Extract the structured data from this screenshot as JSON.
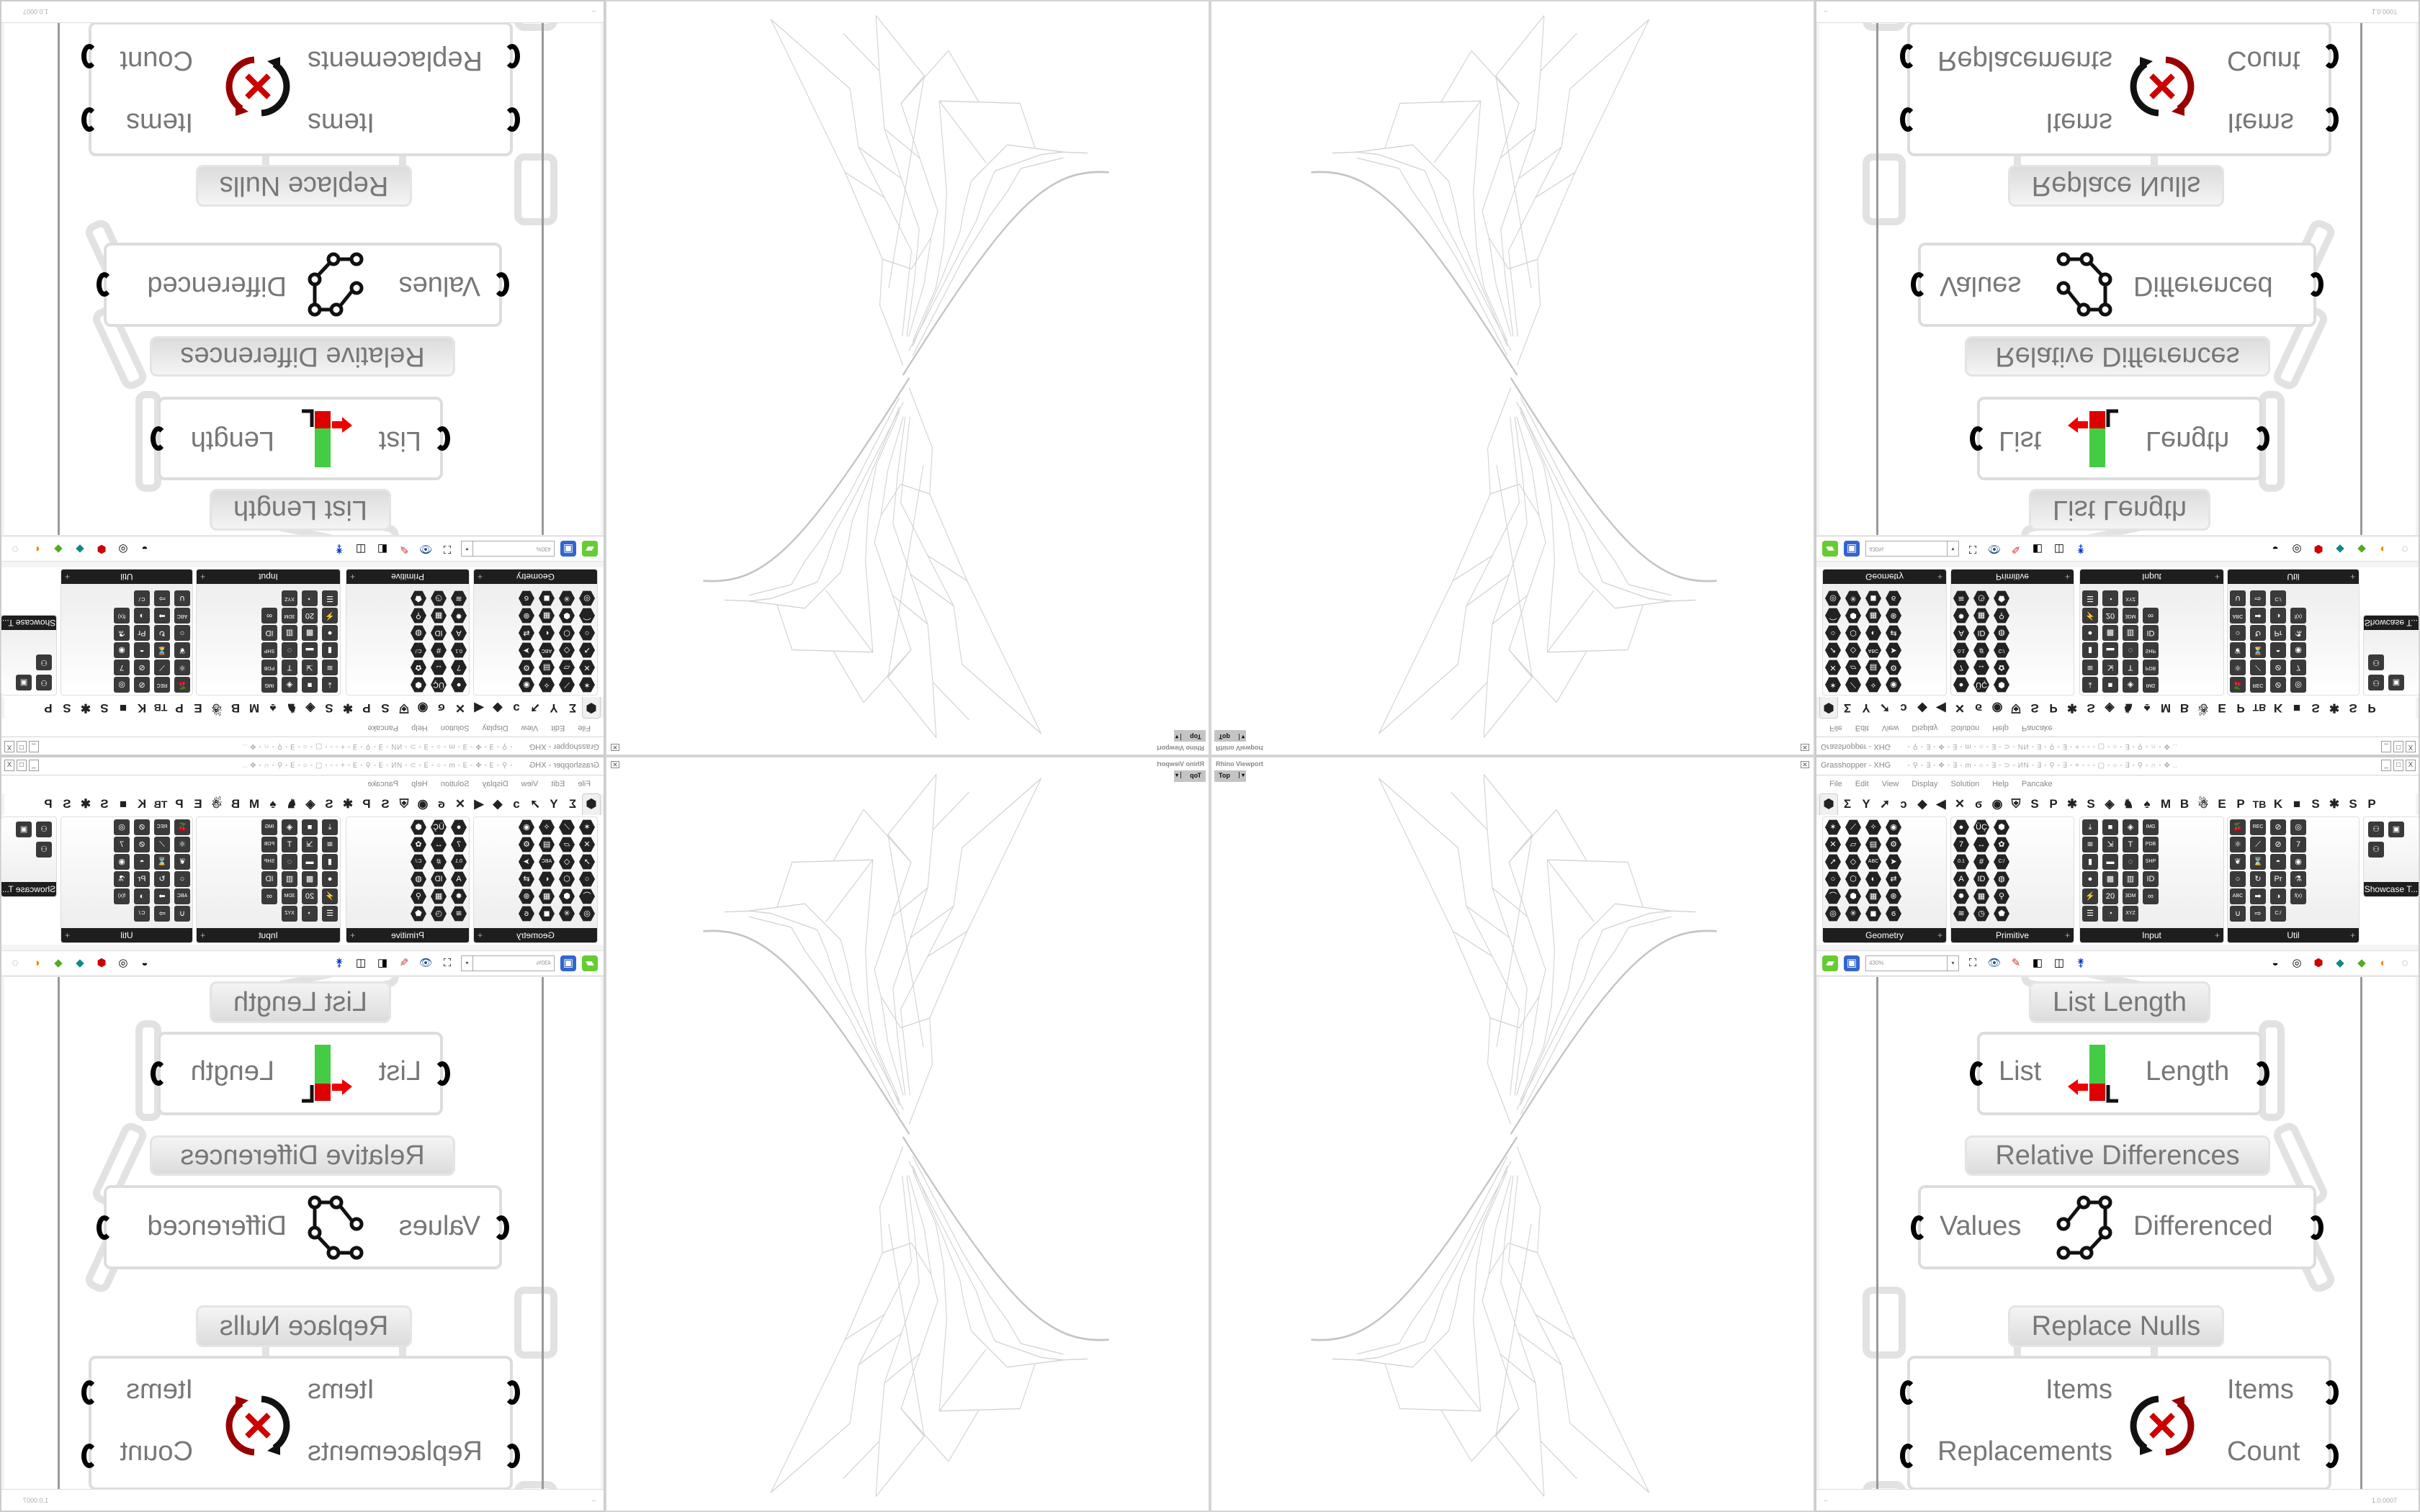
{
  "viewport": {
    "title": "Rhino Viewport",
    "view": "Top",
    "dropdown": "▾",
    "close": "✕"
  },
  "grasshopper": {
    "title": "Grasshopper - XHG",
    "title_glyphs": "◦ ⚲ ◦ ∃ ◦ ✥ ◦ ∃ ◦ m ◦ ○ ◦ ∃ ◦ ⊃ ◦ ИN ◦ ∃ ◦ ⚲ ◦ ∃ ◦ + ◦ ◦ ◦ ▢ ◦ ○ ◦ ∃ ◦ ⚲ ◦ ∩ ◦ ✥ ..",
    "window_buttons": [
      "_",
      "□",
      "X"
    ],
    "menu": [
      "File",
      "Edit",
      "View",
      "Display",
      "Solution",
      "Help",
      "Pancake"
    ],
    "tabs": [
      "⬢",
      "Σ",
      "Y",
      "➚",
      "ↄ",
      "◆",
      "◀",
      "✕",
      "ϭ",
      "◉",
      "⛨",
      "S",
      "P",
      "✱",
      "S",
      "◈",
      "♞",
      "♠",
      "M",
      "B",
      "☃",
      "E",
      "P",
      "TB",
      "K",
      "■",
      "S",
      "✱",
      "S",
      "P"
    ],
    "palette": [
      {
        "label": "Geometry",
        "plus": "+",
        "shape": "hex",
        "icons": [
          "✶",
          "✕",
          "➚",
          "○",
          "⌒",
          "◎",
          "⟋",
          "▱",
          "◇",
          "⬡",
          "⬢",
          "✳",
          "✧",
          "▤",
          "ABC",
          "◐",
          "▦",
          "◼",
          "◉",
          "⚙",
          "➤",
          "⇄",
          "⊛",
          "ϭ"
        ]
      },
      {
        "label": "Primitive",
        "plus": "+",
        "shape": "hex",
        "icons": [
          "●",
          "7",
          "0.1",
          "A",
          "✹",
          "≋",
          "ÜÇ",
          "↔",
          "#",
          "ID",
          "▦",
          "◷",
          "⬢",
          "✿",
          "C:/",
          "◍",
          "⚲",
          "⬟"
        ]
      },
      {
        "label": "Input",
        "plus": "+",
        "shape": "sq",
        "icons": [
          "⤓",
          "≋",
          "▮",
          "●",
          "⚡",
          "☰",
          "■",
          "⇲",
          "▬",
          "▩",
          "20",
          "◔",
          "◈",
          "T",
          "◌",
          "▥",
          "3DM",
          "XYZ",
          "IMG",
          "PDB",
          "SHP",
          "ID",
          "∞"
        ]
      },
      {
        "label": "Util",
        "plus": "+",
        "shape": "sq",
        "icons": [
          "🍒",
          "⚛",
          "❦",
          "○",
          "ABC",
          "∪",
          "REC",
          "⟋",
          "⌛",
          "↻",
          "➡",
          "⇨",
          "⊘",
          "⊘",
          "◓",
          "Pr",
          "◑",
          "C:/",
          "◎",
          "7",
          "◉",
          "⚗",
          "f(x)"
        ]
      }
    ],
    "showcase": {
      "label": "Showcase T...",
      "icons": [
        "⚇",
        "▣",
        "⚇"
      ]
    },
    "toolbar": {
      "zoom": "430%",
      "dropdown": "▾"
    },
    "canvas": {
      "list_length_label": "List Length",
      "list_length": {
        "input": "List",
        "output": "Length"
      },
      "relative_diff_label": "Relative Differences",
      "relative_diff": {
        "input": "Values",
        "output": "Differenced"
      },
      "replace_nulls_label": "Replace Nulls",
      "replace_nulls": {
        "inputs": [
          "Items",
          "Replacements"
        ],
        "outputs": [
          "Items",
          "Count"
        ]
      }
    },
    "status": {
      "left": "--",
      "version": "1.0.0007"
    }
  },
  "colors": {
    "wire": "#999999",
    "component_text": "#777777",
    "palette_dark": "#1e1e1e",
    "wireframe": "#cfcfcf"
  }
}
